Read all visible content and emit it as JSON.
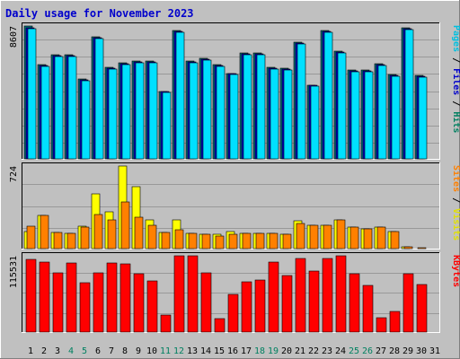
{
  "chart_data": {
    "type": "bar",
    "title": "Daily usage for November 2023",
    "categories": [
      "1",
      "2",
      "3",
      "4",
      "5",
      "6",
      "7",
      "8",
      "9",
      "10",
      "11",
      "12",
      "13",
      "14",
      "15",
      "16",
      "17",
      "18",
      "19",
      "20",
      "21",
      "22",
      "23",
      "24",
      "25",
      "26",
      "27",
      "28",
      "29",
      "30",
      "31"
    ],
    "weekend_days": [
      "4",
      "5",
      "11",
      "12",
      "18",
      "19",
      "25",
      "26"
    ],
    "panels": [
      {
        "id": "top",
        "max_label": "8607",
        "ylim": [
          0,
          8607
        ],
        "right_labels": [
          {
            "text": "Pages",
            "color": "#00c0e0"
          },
          {
            "text": "Files",
            "color": "#0000cc"
          },
          {
            "text": "Hits",
            "color": "#008060"
          }
        ],
        "series": [
          {
            "name": "Hits",
            "color": "#007080",
            "values": [
              8607,
              6100,
              6735,
              6758,
              5184,
              7925,
              5936,
              6225,
              6325,
              6349,
              4390,
              8325,
              6354,
              6515,
              6100,
              5547,
              6845,
              6840,
              5945,
              5867,
              7564,
              4795,
              8323,
              6965,
              5766,
              5740,
              6139,
              5444,
              8476,
              5388,
              0
            ]
          },
          {
            "name": "Files",
            "color": "#0000cc",
            "values": [
              8501,
              6050,
              6685,
              6708,
              5134,
              7865,
              5886,
              6175,
              6275,
              6299,
              4340,
              8265,
              6304,
              6465,
              6050,
              5497,
              6795,
              6790,
              5895,
              5817,
              7504,
              4745,
              8263,
              6905,
              5716,
              5690,
              6089,
              5394,
              8416,
              5338,
              0
            ]
          },
          {
            "name": "Pages",
            "color": "#00e0ff",
            "values": [
              8430,
              5990,
              6630,
              6650,
              5080,
              7800,
              5830,
              6120,
              6220,
              6240,
              4290,
              8200,
              6250,
              6410,
              5990,
              5440,
              6740,
              6730,
              5840,
              5760,
              7440,
              4690,
              8200,
              6850,
              5660,
              5630,
              6030,
              5340,
              8350,
              5280,
              0
            ]
          }
        ]
      },
      {
        "id": "middle",
        "max_label": "724",
        "ylim": [
          0,
          724
        ],
        "right_labels": [
          {
            "text": "Sites",
            "color": "#ff8000"
          },
          {
            "text": "Visits",
            "color": "#e0e000"
          }
        ],
        "series": [
          {
            "name": "Visits",
            "color": "#ffff00",
            "values": [
              153,
              292,
              139,
              137,
              197,
              483,
              326,
              724,
              541,
              249,
              141,
              252,
              132,
              122,
              122,
              147,
              132,
              132,
              137,
              127,
              246,
              208,
              203,
              249,
              190,
              175,
              185,
              146,
              18,
              0,
              0
            ]
          },
          {
            "name": "Sites",
            "color": "#ff8000",
            "values": [
              197,
              292,
              139,
              137,
              187,
              297,
              252,
              407,
              275,
              204,
              141,
              162,
              132,
              122,
              112,
              127,
              132,
              132,
              137,
              127,
              222,
              208,
              203,
              249,
              190,
              175,
              185,
              146,
              18,
              6,
              0
            ]
          }
        ]
      },
      {
        "id": "bottom",
        "max_label": "115531",
        "ylim": [
          0,
          115531
        ],
        "right_labels": [
          {
            "text": "KBytes",
            "color": "#ff0000"
          }
        ],
        "series": [
          {
            "name": "KBytes",
            "color": "#ff0000",
            "values": [
              110700,
              106200,
              89400,
              104900,
              75200,
              89700,
              104000,
              103300,
              88800,
              76800,
              25800,
              115531,
              115100,
              89300,
              21000,
              57000,
              76100,
              79300,
              105400,
              86100,
              112000,
              92900,
              111600,
              115000,
              87900,
              70300,
              21500,
              31000,
              88900,
              72000,
              0
            ]
          }
        ]
      }
    ]
  }
}
